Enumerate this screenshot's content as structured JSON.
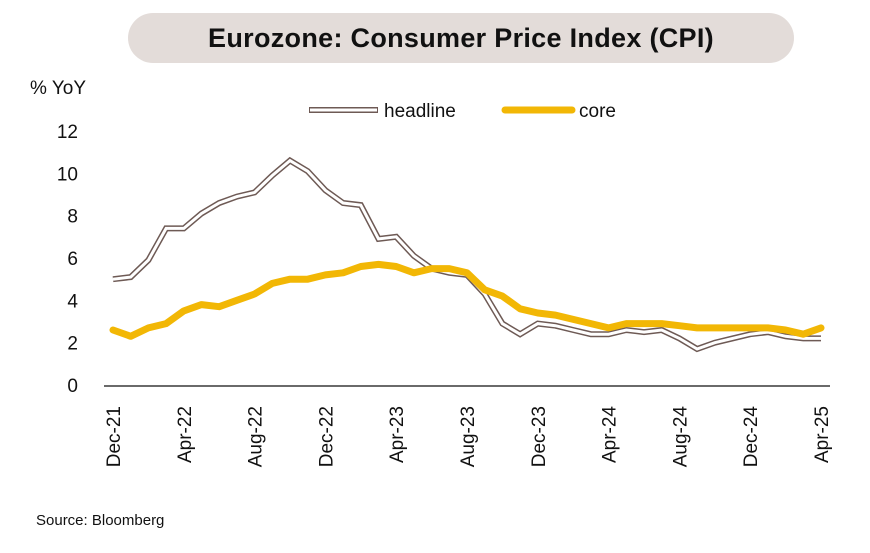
{
  "title": "Eurozone: Consumer Price Index (CPI)",
  "unit_label": "% YoY",
  "source": "Source: Bloomberg",
  "colors": {
    "headline": "#6e5a55",
    "core": "#f2b705",
    "axis": "#111111",
    "title_bg": "#e3dcd9"
  },
  "chart_data": {
    "type": "line",
    "title": "Eurozone: Consumer Price Index (CPI)",
    "ylabel": "% YoY",
    "xlabel": "",
    "ylim": [
      0,
      12
    ],
    "yticks": [
      0,
      2,
      4,
      6,
      8,
      10,
      12
    ],
    "grid": false,
    "legend_position": "top-center",
    "x": [
      "Dec-21",
      "Jan-22",
      "Feb-22",
      "Mar-22",
      "Apr-22",
      "May-22",
      "Jun-22",
      "Jul-22",
      "Aug-22",
      "Sep-22",
      "Oct-22",
      "Nov-22",
      "Dec-22",
      "Jan-23",
      "Feb-23",
      "Mar-23",
      "Apr-23",
      "May-23",
      "Jun-23",
      "Jul-23",
      "Aug-23",
      "Sep-23",
      "Oct-23",
      "Nov-23",
      "Dec-23",
      "Jan-24",
      "Feb-24",
      "Mar-24",
      "Apr-24",
      "May-24",
      "Jun-24",
      "Jul-24",
      "Aug-24",
      "Sep-24",
      "Oct-24",
      "Nov-24",
      "Dec-24",
      "Jan-25",
      "Feb-25",
      "Mar-25",
      "Apr-25"
    ],
    "xtick_labels": [
      "Dec-21",
      "Apr-22",
      "Aug-22",
      "Dec-22",
      "Apr-23",
      "Aug-23",
      "Dec-23",
      "Apr-24",
      "Aug-24",
      "Dec-24",
      "Apr-25"
    ],
    "series": [
      {
        "name": "headline",
        "style": "outlined",
        "values": [
          5.0,
          5.1,
          5.9,
          7.4,
          7.4,
          8.1,
          8.6,
          8.9,
          9.1,
          9.9,
          10.6,
          10.1,
          9.2,
          8.6,
          8.5,
          6.9,
          7.0,
          6.1,
          5.5,
          5.3,
          5.2,
          4.3,
          2.9,
          2.4,
          2.9,
          2.8,
          2.6,
          2.4,
          2.4,
          2.6,
          2.5,
          2.6,
          2.2,
          1.7,
          2.0,
          2.2,
          2.4,
          2.5,
          2.3,
          2.2,
          2.2
        ]
      },
      {
        "name": "core",
        "style": "solid",
        "values": [
          2.6,
          2.3,
          2.7,
          2.9,
          3.5,
          3.8,
          3.7,
          4.0,
          4.3,
          4.8,
          5.0,
          5.0,
          5.2,
          5.3,
          5.6,
          5.7,
          5.6,
          5.3,
          5.5,
          5.5,
          5.3,
          4.5,
          4.2,
          3.6,
          3.4,
          3.3,
          3.1,
          2.9,
          2.7,
          2.9,
          2.9,
          2.9,
          2.8,
          2.7,
          2.7,
          2.7,
          2.7,
          2.7,
          2.6,
          2.4,
          2.7
        ]
      }
    ]
  }
}
